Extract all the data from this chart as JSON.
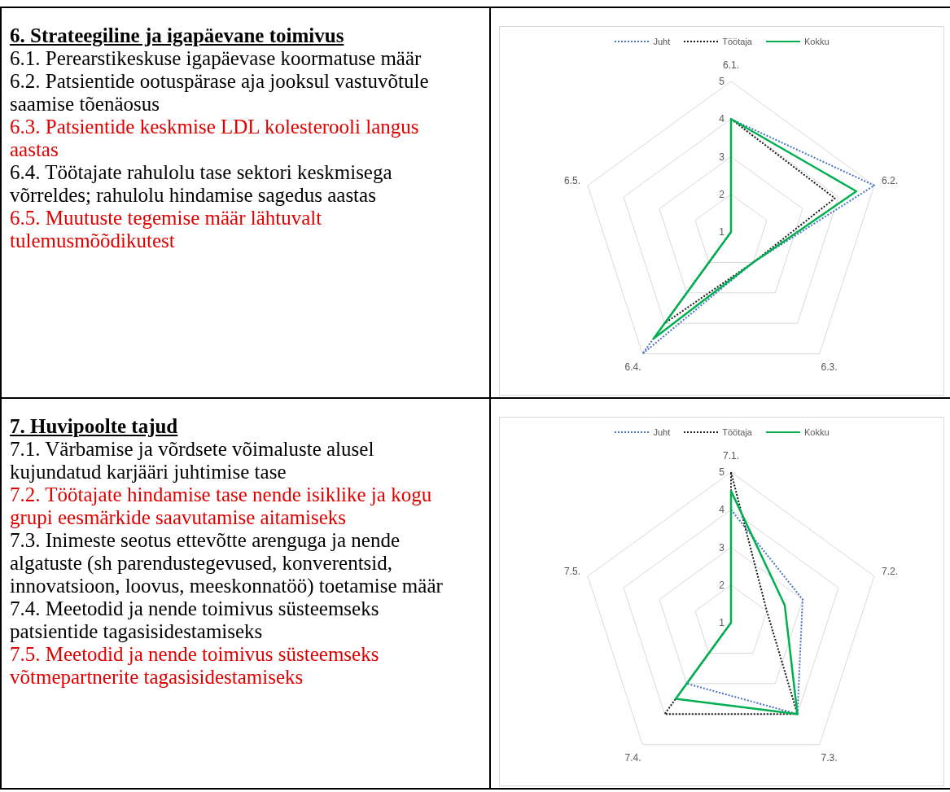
{
  "chart_data": [
    {
      "type": "other",
      "title": "6. Strateegiline ja igapäevane toimivus",
      "annotations": [
        "6.1. Perearstikeskuse igapäevase koormatuse määr",
        "6.2. Patsientide ootuspärase aja jooksul vastuvõtule saamise tõenäosus",
        "6.3. Patsientide keskmise LDL kolesterooli langus aastas",
        "6.4. Töötajate rahulolu tase sektori keskmisega võrreldes; rahulolu hindamise sagedus aastas",
        "6.5. Muutuste tegemise määr lähtuvalt tulemusmõõdikutest"
      ],
      "colors": [
        "#000000",
        "#000000",
        "#e00000",
        "#000000",
        "#e00000"
      ]
    },
    {
      "type": "radar",
      "categories": [
        "6.1.",
        "6.2.",
        "6.3.",
        "6.4.",
        "6.5."
      ],
      "ylim": [
        1,
        5
      ],
      "yticks": [
        1,
        2,
        3,
        4,
        5
      ],
      "grid": true,
      "legend": "top",
      "marker": "none",
      "series": [
        {
          "name": "Juht",
          "color": "#4472c4",
          "line_style": "dotted",
          "values": [
            4,
            5,
            2,
            5,
            1
          ]
        },
        {
          "name": "Töötaja",
          "color": "#1a1a1a",
          "line_style": "dotted",
          "values": [
            4,
            3.9,
            2,
            4,
            1
          ]
        },
        {
          "name": "Kokku",
          "color": "#00b050",
          "line_style": "solid",
          "values": [
            4,
            4.5,
            2,
            4.5,
            1
          ]
        }
      ]
    },
    {
      "type": "other",
      "title": "7. Huvipoolte tajud",
      "annotations": [
        "7.1. Värbamise ja võrdsete võimaluste alusel kujundatud karjääri juhtimise tase",
        "7.2. Töötajate hindamise tase nende isiklike ja kogu grupi eesmärkide saavutamise aitamiseks",
        "7.3. Inimeste seotus ettevõtte arenguga ja nende algatuste (sh parendustegevused, konverentsid, innovatsioon, loovus, meeskonnatöö) toetamise määr",
        "7.4. Meetodid ja nende  toimivus süsteemseks patsientide tagasisidestamiseks",
        "7.5. Meetodid ja nende toimivus süsteemseks võtmepartnerite tagasisidestamiseks"
      ],
      "colors": [
        "#000000",
        "#e00000",
        "#000000",
        "#000000",
        "#e00000"
      ]
    },
    {
      "type": "radar",
      "categories": [
        "7.1.",
        "7.2.",
        "7.3.",
        "7.4.",
        "7.5."
      ],
      "ylim": [
        1,
        5
      ],
      "yticks": [
        1,
        2,
        3,
        4,
        5
      ],
      "grid": true,
      "legend": "top",
      "marker": "none",
      "series": [
        {
          "name": "Juht",
          "color": "#4472c4",
          "line_style": "dotted",
          "values": [
            4,
            3,
            4,
            3,
            1
          ]
        },
        {
          "name": "Töötaja",
          "color": "#1a1a1a",
          "line_style": "dotted",
          "values": [
            5,
            2,
            4,
            4,
            1
          ]
        },
        {
          "name": "Kokku",
          "color": "#00b050",
          "line_style": "solid",
          "values": [
            4.5,
            2.5,
            4,
            3.5,
            1
          ]
        }
      ]
    }
  ]
}
